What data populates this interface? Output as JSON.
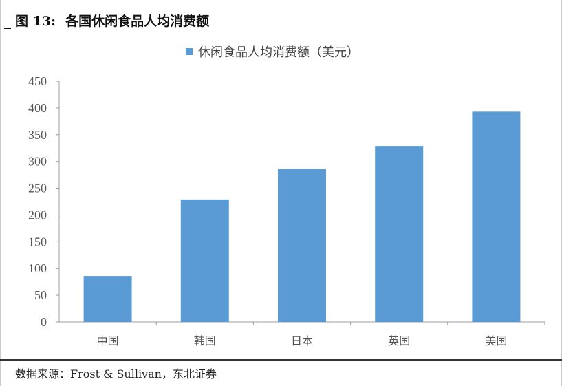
{
  "title": {
    "fig_label": "图 13:",
    "text": "各国休闲食品人均消费额"
  },
  "chart_data": {
    "type": "bar",
    "categories": [
      "中国",
      "韩国",
      "日本",
      "英国",
      "美国"
    ],
    "series": [
      {
        "name": "休闲食品人均消费额（美元）",
        "values": [
          86,
          229,
          286,
          329,
          393
        ]
      }
    ],
    "ylim": [
      0,
      450
    ],
    "yticks": [
      0,
      50,
      100,
      150,
      200,
      250,
      300,
      350,
      400,
      450
    ],
    "grid": false,
    "legend_position": "top",
    "bar_color": "#5b9bd5",
    "axis_color": "#9e9e9e"
  },
  "source": "数据来源：Frost & Sullivan，东北证券"
}
